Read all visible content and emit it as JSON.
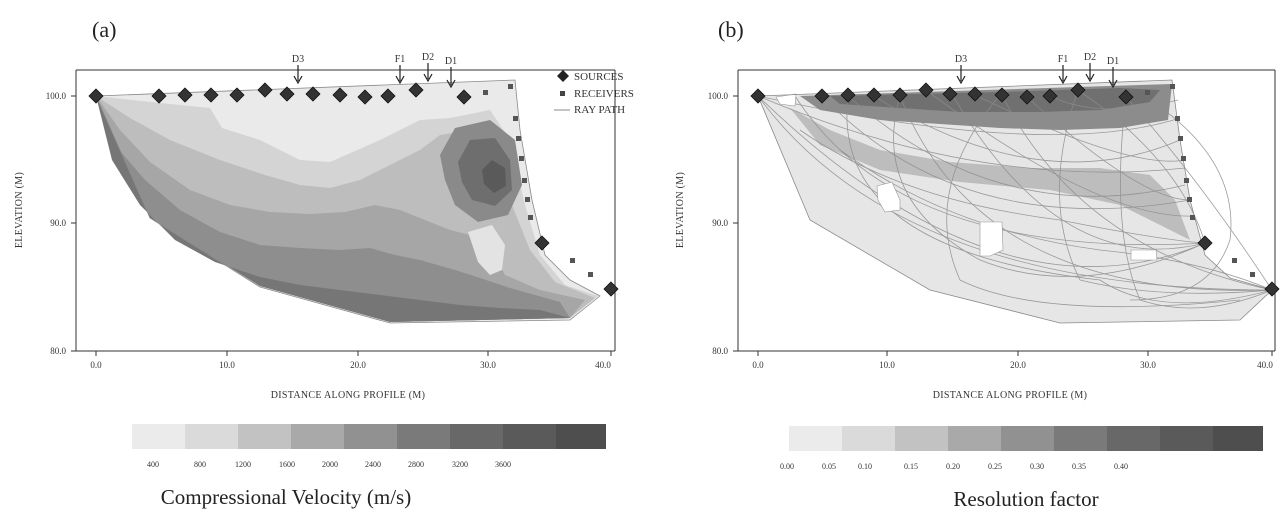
{
  "chart_data": [
    {
      "panel": "(a)",
      "type": "heatmap",
      "xlabel": "DISTANCE ALONG PROFILE (M)",
      "ylabel": "ELEVATION (M)",
      "xlim": [
        -1.5,
        41
      ],
      "ylim": [
        80,
        102
      ],
      "x_ticks": [
        "0.0",
        "10.0",
        "20.0",
        "30.0",
        "40.0"
      ],
      "y_ticks": [
        "80.0",
        "90.0",
        "100.0"
      ],
      "legend": [
        "SOURCES",
        "RECEIVERS",
        "RAY PATH"
      ],
      "legend_position": "top-right",
      "fault_labels": [
        {
          "label": "D3",
          "x": 15.8
        },
        {
          "label": "F1",
          "x": 23.8
        },
        {
          "label": "D2",
          "x": 25.7
        },
        {
          "label": "D1",
          "x": 27.6
        }
      ],
      "sources": [
        [
          0.0,
          99.8
        ],
        [
          5.0,
          99.9
        ],
        [
          7.0,
          100.0
        ],
        [
          9.0,
          100.0
        ],
        [
          11.0,
          100.0
        ],
        [
          13.2,
          100.4
        ],
        [
          15.0,
          100.0
        ],
        [
          17.0,
          100.0
        ],
        [
          19.0,
          99.9
        ],
        [
          21.0,
          99.7
        ],
        [
          23.0,
          99.8
        ],
        [
          25.2,
          100.4
        ],
        [
          28.5,
          99.8
        ],
        [
          35.0,
          88.5
        ],
        [
          40.0,
          85.0
        ]
      ],
      "receivers": [
        [
          30.5,
          100.2
        ],
        [
          32.0,
          100.6
        ],
        [
          32.8,
          97.6
        ],
        [
          33.2,
          95.8
        ],
        [
          33.7,
          94.2
        ],
        [
          34.0,
          92.5
        ],
        [
          34.3,
          90.8
        ],
        [
          36.0,
          87.5
        ],
        [
          37.5,
          86.2
        ],
        [
          38.8,
          85.3
        ]
      ],
      "colorbar": {
        "title": "Compressional Velocity (m/s)",
        "tick_labels": [
          "400",
          "800",
          "1200",
          "1600",
          "2000",
          "2400",
          "2800",
          "3200",
          "3600"
        ],
        "colors": [
          "#ebebeb",
          "#dadada",
          "#c2c2c2",
          "#a9a9a9",
          "#919191",
          "#7a7a7a",
          "#686868",
          "#5a5a5a",
          "#4e4e4e"
        ]
      }
    },
    {
      "panel": "(b)",
      "type": "heatmap",
      "xlabel": "DISTANCE ALONG PROFILE (M)",
      "ylabel": "ELEVATION (M)",
      "xlim": [
        -1.5,
        40
      ],
      "ylim": [
        80,
        102
      ],
      "x_ticks": [
        "0.0",
        "10.0",
        "20.0",
        "30.0",
        "40.0"
      ],
      "y_ticks": [
        "80.0",
        "90.0",
        "100.0"
      ],
      "fault_labels": [
        {
          "label": "D3",
          "x": 15.8
        },
        {
          "label": "F1",
          "x": 23.8
        },
        {
          "label": "D2",
          "x": 25.7
        },
        {
          "label": "D1",
          "x": 27.6
        }
      ],
      "colorbar": {
        "title": "Resolution factor",
        "tick_labels": [
          "0.00",
          "0.05",
          "0.10",
          "0.15",
          "0.20",
          "0.25",
          "0.30",
          "0.35",
          "0.40"
        ],
        "colors": [
          "#ebebeb",
          "#dadada",
          "#c2c2c2",
          "#a9a9a9",
          "#919191",
          "#7a7a7a",
          "#686868",
          "#5a5a5a",
          "#4e4e4e"
        ]
      }
    }
  ]
}
